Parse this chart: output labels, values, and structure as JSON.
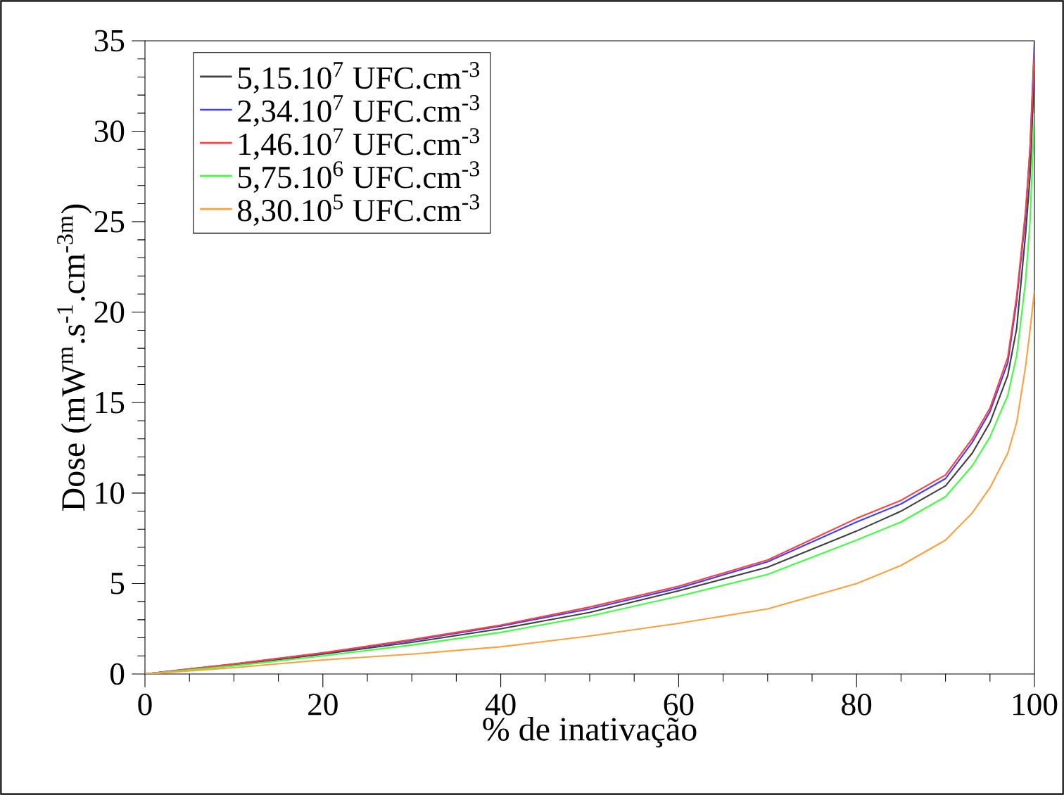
{
  "chart_data": {
    "type": "line",
    "xlabel": "% de inativação",
    "ylabel": "Dose (mW$^{m}$.s$^{-1}$.cm$^{-3m}$)",
    "x": [
      0,
      10,
      20,
      30,
      40,
      50,
      60,
      70,
      80,
      85,
      90,
      93,
      95,
      97,
      98,
      99,
      99.5,
      100
    ],
    "series": [
      {
        "name": "5,15.10$^{7}$ UFC.cm$^{-3}$",
        "color": "#404040",
        "values": [
          0,
          0.5,
          1.1,
          1.75,
          2.5,
          3.4,
          4.6,
          5.9,
          7.9,
          9.0,
          10.4,
          12.2,
          13.9,
          16.5,
          19.1,
          24.3,
          27.5,
          33.4
        ]
      },
      {
        "name": "2,34.10$^{7}$ UFC.cm$^{-3}$",
        "color": "#4040ff",
        "values": [
          0,
          0.55,
          1.15,
          1.85,
          2.65,
          3.6,
          4.75,
          6.2,
          8.4,
          9.4,
          10.8,
          12.8,
          14.5,
          17.2,
          20.6,
          25.3,
          29,
          35
        ]
      },
      {
        "name": "1,46.10$^{7}$ UFC.cm$^{-3}$",
        "color": "#ff4040",
        "values": [
          0,
          0.55,
          1.17,
          1.9,
          2.7,
          3.7,
          4.85,
          6.3,
          8.6,
          9.6,
          11.0,
          13.0,
          14.7,
          17.5,
          20.9,
          25.6,
          29,
          34.5
        ]
      },
      {
        "name": "5,75.10$^{6}$ UFC.cm$^{-3}$",
        "color": "#40ff40",
        "values": [
          0,
          0.45,
          1.0,
          1.6,
          2.3,
          3.2,
          4.3,
          5.5,
          7.4,
          8.4,
          9.8,
          11.5,
          13.1,
          15.4,
          17.6,
          21.7,
          25,
          31
        ]
      },
      {
        "name": "8,30.10$^{5}$ UFC.cm$^{-3}$",
        "color": "#ffa040",
        "values": [
          0,
          0.35,
          0.78,
          1.1,
          1.5,
          2.1,
          2.8,
          3.6,
          5.0,
          6.0,
          7.4,
          8.9,
          10.3,
          12.2,
          13.9,
          17.0,
          19,
          21.2
        ]
      }
    ],
    "xlim": [
      0,
      100
    ],
    "ylim": [
      0,
      35
    ],
    "xticks": [
      0,
      20,
      40,
      60,
      80,
      100
    ],
    "yticks": [
      0,
      5,
      10,
      15,
      20,
      25,
      30,
      35
    ],
    "legend": "top left",
    "grid": false,
    "marker": "none",
    "line_style": "solid"
  }
}
